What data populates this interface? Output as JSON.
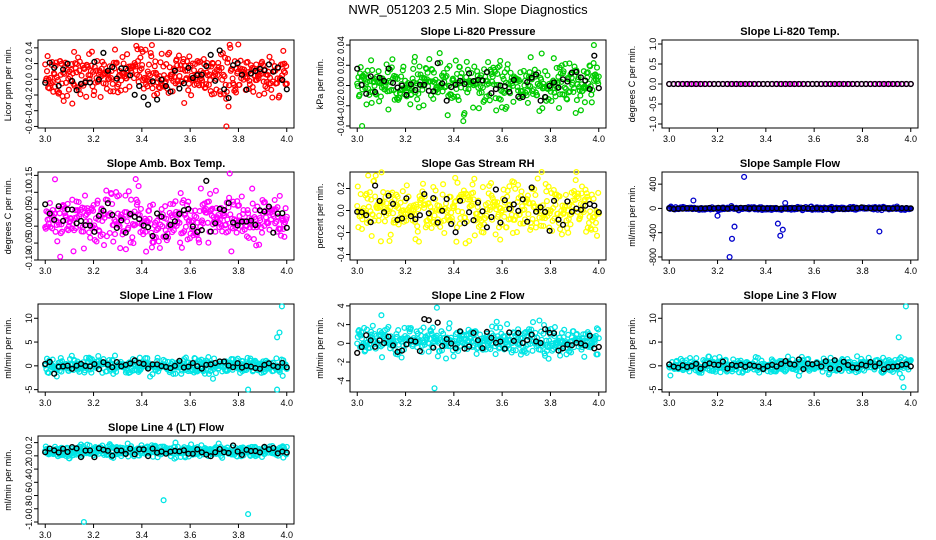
{
  "title": "NWR_051203  2.5 Min. Slope Diagnostics",
  "chart_data": [
    {
      "type": "scatter",
      "title": "Slope Li-820 CO2",
      "ylabel": "Licor ppm per min.",
      "color": "#ff0000",
      "xlim": [
        2.97,
        4.03
      ],
      "ylim": [
        -0.62,
        0.5
      ],
      "xticks": [
        3.0,
        3.2,
        3.4,
        3.6,
        3.8,
        4.0
      ],
      "yticks": [
        -0.6,
        -0.4,
        -0.2,
        0.0,
        0.2,
        0.4
      ],
      "ytick_labels": [
        "-0.6",
        "-0.4",
        "-0.2",
        "0.0",
        "0.2",
        "0.4"
      ],
      "x": [
        3.0,
        4.0
      ],
      "y_center": 0.05,
      "y_spread": 0.16,
      "black_y_spread": 0.2,
      "n": 420,
      "n_black": 55,
      "outliers": [
        {
          "x": 3.75,
          "y": -0.6
        }
      ]
    },
    {
      "type": "scatter",
      "title": "Slope Li-820 Pressure",
      "ylabel": "kPa per min.",
      "color": "#00cc00",
      "xlim": [
        2.97,
        4.03
      ],
      "ylim": [
        -0.042,
        0.045
      ],
      "xticks": [
        3.0,
        3.2,
        3.4,
        3.6,
        3.8,
        4.0
      ],
      "yticks": [
        -0.04,
        -0.02,
        0.0,
        0.02,
        0.04
      ],
      "ytick_labels": [
        "-0.04",
        "-0.02",
        "0.00",
        "0.02",
        "0.04"
      ],
      "x": [
        3.0,
        4.0
      ],
      "y_center": 0.0,
      "y_spread": 0.012,
      "black_y_spread": 0.01,
      "n": 420,
      "n_black": 55,
      "outliers": [
        {
          "x": 3.02,
          "y": -0.04
        },
        {
          "x": 3.98,
          "y": 0.04
        }
      ]
    },
    {
      "type": "scatter",
      "title": "Slope Li-820 Temp.",
      "ylabel": "degrees C per min.",
      "color": "#ff00ff",
      "xlim": [
        2.97,
        4.03
      ],
      "ylim": [
        -1.1,
        1.1
      ],
      "xticks": [
        3.0,
        3.2,
        3.4,
        3.6,
        3.8,
        4.0
      ],
      "yticks": [
        -1.0,
        -0.5,
        0.0,
        0.5,
        1.0
      ],
      "ytick_labels": [
        "-1.0",
        "-0.5",
        "0.0",
        "0.5",
        "1.0"
      ],
      "x": [
        3.0,
        4.0
      ],
      "y_center": 0.0,
      "y_spread": 0.0,
      "black_y_spread": 0.0,
      "n": 60,
      "n_black": 55,
      "outliers": []
    },
    {
      "type": "scatter",
      "title": "Slope Amb. Box Temp.",
      "ylabel": "degrees C per min.",
      "color": "#ff00ff",
      "xlim": [
        2.97,
        4.03
      ],
      "ylim": [
        -0.1,
        0.16
      ],
      "xticks": [
        3.0,
        3.2,
        3.4,
        3.6,
        3.8,
        4.0
      ],
      "yticks": [
        -0.1,
        -0.05,
        0.0,
        0.05,
        0.1,
        0.15
      ],
      "ytick_labels": [
        "-0.10",
        "-0.05",
        "0.00",
        "0.05",
        "0.10",
        "0.15"
      ],
      "x": [
        3.0,
        4.0
      ],
      "y_center": 0.02,
      "y_spread": 0.045,
      "black_y_spread": 0.04,
      "n": 420,
      "n_black": 55,
      "outliers": []
    },
    {
      "type": "scatter",
      "title": "Slope Gas Stream RH",
      "ylabel": "percent per min.",
      "color": "#ffff00",
      "xlim": [
        2.97,
        4.03
      ],
      "ylim": [
        -0.45,
        0.35
      ],
      "xticks": [
        3.0,
        3.2,
        3.4,
        3.6,
        3.8,
        4.0
      ],
      "yticks": [
        -0.4,
        -0.2,
        0.0,
        0.2
      ],
      "ytick_labels": [
        "-0.4",
        "-0.2",
        "0.0",
        "0.2"
      ],
      "x": [
        3.0,
        4.0
      ],
      "y_center": 0.0,
      "y_spread": 0.14,
      "black_y_spread": 0.13,
      "n": 420,
      "n_black": 55,
      "outliers": []
    },
    {
      "type": "scatter",
      "title": "Slope Sample Flow",
      "ylabel": "ml/min per min.",
      "color": "#0000cc",
      "xlim": [
        2.97,
        4.03
      ],
      "ylim": [
        -850,
        600
      ],
      "xticks": [
        3.0,
        3.2,
        3.4,
        3.6,
        3.8,
        4.0
      ],
      "yticks": [
        -800,
        -400,
        0,
        400
      ],
      "ytick_labels": [
        "-800",
        "-400",
        "0",
        "400"
      ],
      "x": [
        3.0,
        4.0
      ],
      "y_center": 0.0,
      "y_spread": 15,
      "black_y_spread": 5,
      "n": 300,
      "n_black": 55,
      "outliers": [
        {
          "x": 3.31,
          "y": 520
        },
        {
          "x": 3.25,
          "y": -800
        },
        {
          "x": 3.26,
          "y": -500
        },
        {
          "x": 3.27,
          "y": -300
        },
        {
          "x": 3.45,
          "y": -250
        },
        {
          "x": 3.46,
          "y": -450
        },
        {
          "x": 3.47,
          "y": -350
        },
        {
          "x": 3.87,
          "y": -380
        },
        {
          "x": 3.1,
          "y": 130
        },
        {
          "x": 3.48,
          "y": 90
        },
        {
          "x": 3.2,
          "y": -120
        }
      ]
    },
    {
      "type": "scatter",
      "title": "Slope Line 1 Flow",
      "ylabel": "ml/min per min.",
      "color": "#00e5e5",
      "xlim": [
        2.97,
        4.03
      ],
      "ylim": [
        -5.5,
        13
      ],
      "xticks": [
        3.0,
        3.2,
        3.4,
        3.6,
        3.8,
        4.0
      ],
      "yticks": [
        -5,
        0,
        5,
        10
      ],
      "ytick_labels": [
        "-5",
        "0",
        "5",
        "10"
      ],
      "x": [
        3.0,
        4.0
      ],
      "y_center": 0.0,
      "y_spread": 1.0,
      "black_y_spread": 0.6,
      "n": 420,
      "n_black": 55,
      "outliers": [
        {
          "x": 3.98,
          "y": 12.5
        },
        {
          "x": 3.97,
          "y": 7
        },
        {
          "x": 3.96,
          "y": 6
        },
        {
          "x": 3.84,
          "y": -5
        },
        {
          "x": 3.96,
          "y": -5
        }
      ]
    },
    {
      "type": "scatter",
      "title": "Slope Line 2 Flow",
      "ylabel": "ml/min per min.",
      "color": "#00e5e5",
      "xlim": [
        2.97,
        4.03
      ],
      "ylim": [
        -5.2,
        4.2
      ],
      "xticks": [
        3.0,
        3.2,
        3.4,
        3.6,
        3.8,
        4.0
      ],
      "yticks": [
        -4,
        -2,
        0,
        2,
        4
      ],
      "ytick_labels": [
        "-4",
        "-2",
        "0",
        "2",
        "4"
      ],
      "x": [
        3.0,
        4.0
      ],
      "y_center": 0.3,
      "y_spread": 0.8,
      "black_y_spread": 0.9,
      "n": 420,
      "n_black": 55,
      "outliers": [
        {
          "x": 3.33,
          "y": 3.8
        },
        {
          "x": 3.32,
          "y": -4.8
        },
        {
          "x": 3.1,
          "y": 3.0
        }
      ]
    },
    {
      "type": "scatter",
      "title": "Slope Line 3 Flow",
      "ylabel": "ml/min per min.",
      "color": "#00e5e5",
      "xlim": [
        2.97,
        4.03
      ],
      "ylim": [
        -5.5,
        13
      ],
      "xticks": [
        3.0,
        3.2,
        3.4,
        3.6,
        3.8,
        4.0
      ],
      "yticks": [
        -5,
        0,
        5,
        10
      ],
      "ytick_labels": [
        "-5",
        "0",
        "5",
        "10"
      ],
      "x": [
        3.0,
        4.0
      ],
      "y_center": 0.0,
      "y_spread": 0.9,
      "black_y_spread": 0.6,
      "n": 420,
      "n_black": 55,
      "outliers": [
        {
          "x": 3.98,
          "y": 12.5
        },
        {
          "x": 3.95,
          "y": 6
        },
        {
          "x": 3.97,
          "y": -4.5
        }
      ]
    },
    {
      "type": "scatter",
      "title": "Slope Line 4 (LT) Flow",
      "ylabel": "ml/min per min.",
      "color": "#00e5e5",
      "xlim": [
        2.97,
        4.03
      ],
      "ylim": [
        -1.03,
        0.3
      ],
      "xticks": [
        3.0,
        3.2,
        3.4,
        3.6,
        3.8,
        4.0
      ],
      "yticks": [
        -1.0,
        -0.8,
        -0.6,
        -0.4,
        -0.2,
        0.0,
        0.2
      ],
      "ytick_labels": [
        "-1.0",
        "-0.8",
        "-0.6",
        "-0.4",
        "-0.2",
        "0.0",
        "0.2"
      ],
      "x": [
        3.0,
        4.0
      ],
      "y_center": 0.07,
      "y_spread": 0.05,
      "black_y_spread": 0.05,
      "n": 420,
      "n_black": 55,
      "outliers": [
        {
          "x": 3.16,
          "y": -1.0
        },
        {
          "x": 3.49,
          "y": -0.67
        },
        {
          "x": 3.84,
          "y": -0.88
        }
      ]
    }
  ]
}
